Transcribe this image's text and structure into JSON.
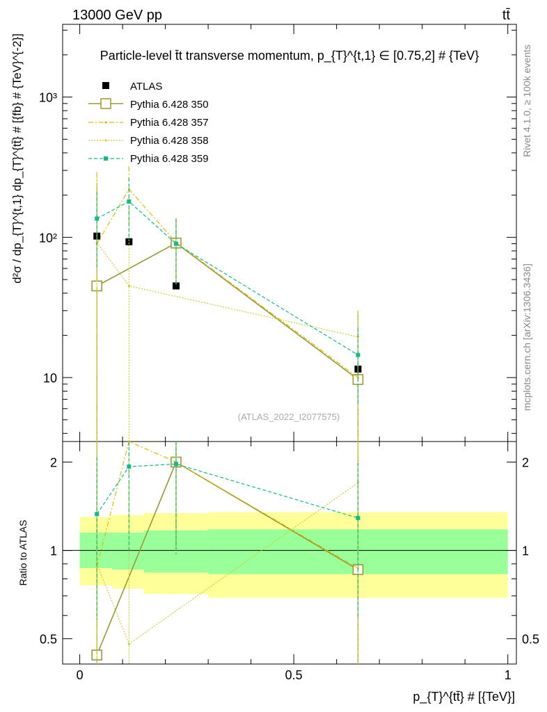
{
  "header": {
    "left": "13000 GeV pp",
    "right": "tt̄"
  },
  "side_labels": {
    "rivet": "Rivet 4.1.0, ≥ 100k events",
    "mcplots": "mcplots.cern.ch [arXiv:1306.3436]"
  },
  "chart_data": [
    {
      "type": "scatter",
      "panel": "main",
      "title": "Particle-level t̄t transverse momentum, p_{T}^{t,1} ∈ [0.75,2] # {TeV}",
      "ylabel": "d²σ / dp_{T}^{t,1} dp_{T}^{tt̄} # [{fb} # {TeV}^{-2}]",
      "yscale": "log",
      "ylim": [
        3.5,
        3300
      ],
      "xlim": [
        -0.04,
        1.02
      ],
      "y_ticks": [
        {
          "value": 10,
          "label": "10"
        },
        {
          "value": 100,
          "label": "10²"
        },
        {
          "value": 1000,
          "label": "10³"
        }
      ],
      "watermark": "(ATLAS_2022_I2077575)",
      "legend_position": "top-left",
      "series": [
        {
          "name": "ATLAS",
          "color": "#000000",
          "style": "data",
          "x": [
            0.04,
            0.115,
            0.225,
            0.65
          ],
          "values": [
            102,
            93,
            45,
            11.5
          ],
          "err": [
            0,
            0,
            0,
            0
          ]
        },
        {
          "name": "Pythia 6.428 350",
          "color": "#999933",
          "style": "solid",
          "marker": "open-square",
          "x": [
            0.04,
            0.225,
            0.65
          ],
          "values": [
            45,
            91,
            9.7
          ],
          "err": [
            200,
            45,
            20
          ]
        },
        {
          "name": "Pythia 6.428 357",
          "color": "#ddbb00",
          "style": "dashdot",
          "marker": "dot",
          "x": [
            0.04,
            0.115,
            0.225,
            0.65
          ],
          "values": [
            90,
            220,
            92,
            10
          ],
          "err": [
            200,
            100,
            45,
            20
          ]
        },
        {
          "name": "Pythia 6.428 358",
          "color": "#cccc33",
          "style": "dotted",
          "marker": "dot",
          "x": [
            0.04,
            0.115,
            0.65
          ],
          "values": [
            92,
            45,
            19.5
          ],
          "err": [
            200,
            100,
            10
          ]
        },
        {
          "name": "Pythia 6.428 359",
          "color": "#11bb88",
          "style": "dashed",
          "marker": "small-square",
          "x": [
            0.04,
            0.115,
            0.225,
            0.65
          ],
          "values": [
            136,
            180,
            90,
            14.5
          ],
          "err": [
            75,
            85,
            45,
            8
          ]
        }
      ]
    },
    {
      "type": "scatter",
      "panel": "ratio",
      "ylabel": "Ratio to ATLAS",
      "xlabel": "p_{T}^{tt̄} # [{TeV}]",
      "yscale": "log",
      "ylim": [
        0.41,
        2.35
      ],
      "xlim": [
        -0.04,
        1.02
      ],
      "x_ticks": [
        {
          "value": 0,
          "label": "0"
        },
        {
          "value": 0.5,
          "label": "0.5"
        },
        {
          "value": 1,
          "label": "1"
        }
      ],
      "y_ticks": [
        {
          "value": 0.5,
          "label": "0.5"
        },
        {
          "value": 1,
          "label": "1"
        },
        {
          "value": 2,
          "label": "2"
        }
      ],
      "bands": [
        {
          "x": [
            0,
            0.075,
            0.15,
            0.3,
            1.0
          ],
          "yellow_lo": [
            0.76,
            0.74,
            0.71,
            0.69,
            0.69
          ],
          "yellow_hi": [
            1.3,
            1.32,
            1.34,
            1.35,
            1.35
          ],
          "green_lo": [
            0.87,
            0.86,
            0.84,
            0.83,
            0.83
          ],
          "green_hi": [
            1.15,
            1.15,
            1.17,
            1.18,
            1.18
          ]
        }
      ],
      "series": [
        {
          "name": "Pythia 6.428 350",
          "color": "#999933",
          "style": "solid",
          "marker": "open-square",
          "x": [
            0.04,
            0.225,
            0.65
          ],
          "values": [
            0.44,
            2.0,
            0.86
          ],
          "err": [
            3,
            1.0,
            1.5
          ]
        },
        {
          "name": "Pythia 6.428 357",
          "color": "#ddbb00",
          "style": "dashdot",
          "marker": "dot",
          "x": [
            0.04,
            0.115,
            0.225,
            0.65
          ],
          "values": [
            0.88,
            2.35,
            2.0,
            0.87
          ],
          "err": [
            3,
            1.2,
            1.0,
            1.5
          ]
        },
        {
          "name": "Pythia 6.428 358",
          "color": "#cccc33",
          "style": "dotted",
          "marker": "dot",
          "x": [
            0.04,
            0.115,
            0.65
          ],
          "values": [
            0.9,
            0.48,
            1.7
          ],
          "err": [
            3,
            1.2,
            0.9
          ]
        },
        {
          "name": "Pythia 6.428 359",
          "color": "#11bb88",
          "style": "dashed",
          "marker": "small-square",
          "x": [
            0.04,
            0.115,
            0.225,
            0.65
          ],
          "values": [
            1.33,
            1.93,
            1.97,
            1.29
          ],
          "err": [
            0.75,
            0.95,
            1.0,
            0.7
          ]
        }
      ]
    }
  ]
}
